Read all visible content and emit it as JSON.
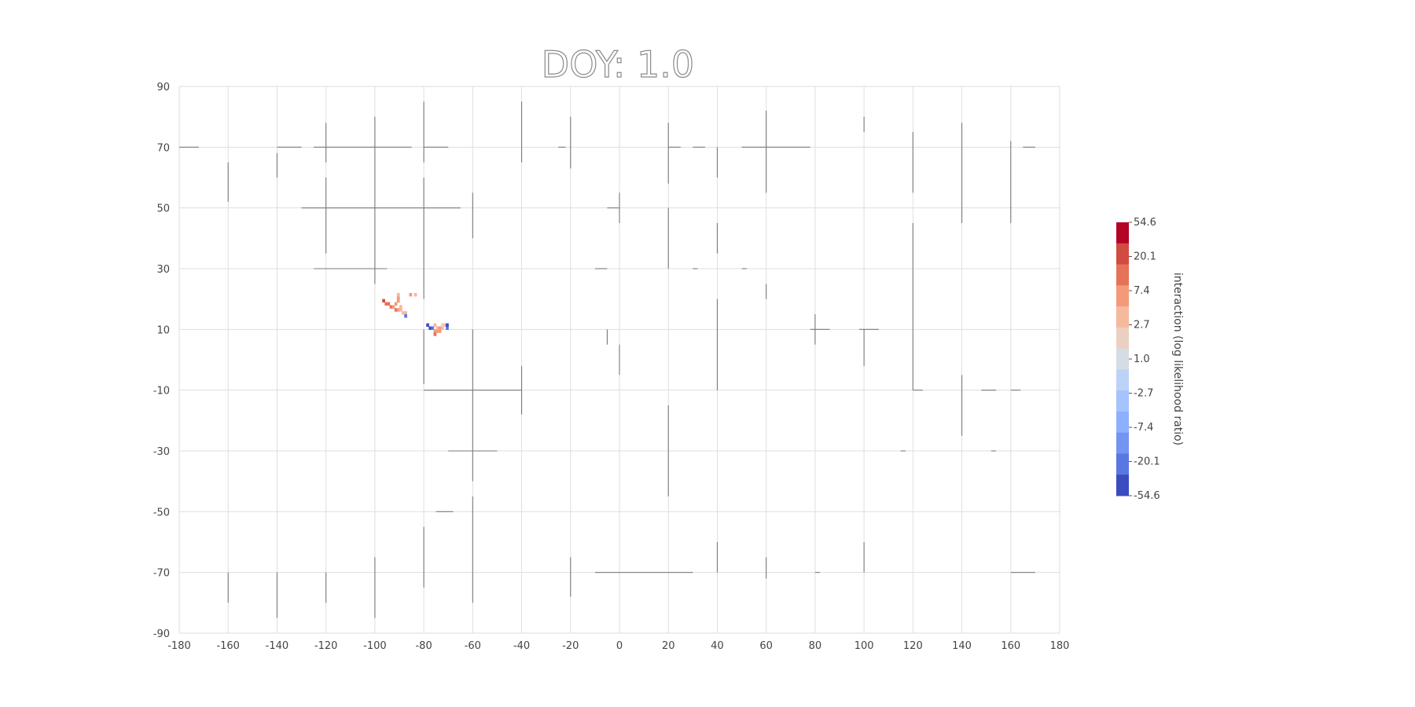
{
  "chart_data": {
    "type": "heatmap",
    "title": "DOY: 1.0",
    "xlabel": "",
    "ylabel": "",
    "xlim": [
      -180,
      180
    ],
    "ylim": [
      -90,
      90
    ],
    "xticks": [
      "-180",
      "-160",
      "-140",
      "-120",
      "-100",
      "-80",
      "-60",
      "-40",
      "-20",
      "0",
      "20",
      "40",
      "60",
      "80",
      "100",
      "120",
      "140",
      "160",
      "180"
    ],
    "yticks": [
      "90",
      "70",
      "50",
      "30",
      "10",
      "-10",
      "-30",
      "-50",
      "-70",
      "-90"
    ],
    "grid": true,
    "colorbar": {
      "label": "interaction (log likelihood ratio)",
      "ticks": [
        "54.6",
        "20.1",
        "7.4",
        "2.7",
        "1.0",
        "-2.7",
        "-7.4",
        "-20.1",
        "-54.6"
      ],
      "colors": [
        "#b40426",
        "#d24b40",
        "#e67358",
        "#f49a7b",
        "#f5b99e",
        "#ebd0c2",
        "#d6dce4",
        "#bcd2f7",
        "#a5c3fe",
        "#8caffe",
        "#7295f4",
        "#5977e3",
        "#3b4cc0"
      ]
    },
    "cells": [
      {
        "lon": -97,
        "lat": 19,
        "color": "#d24b40"
      },
      {
        "lon": -96,
        "lat": 18,
        "color": "#e67358"
      },
      {
        "lon": -95,
        "lat": 18,
        "color": "#e67358"
      },
      {
        "lon": -94,
        "lat": 17,
        "color": "#e67358"
      },
      {
        "lon": -93,
        "lat": 17,
        "color": "#f49a7b"
      },
      {
        "lon": -92,
        "lat": 18,
        "color": "#f49a7b"
      },
      {
        "lon": -91,
        "lat": 19,
        "color": "#f49a7b"
      },
      {
        "lon": -91,
        "lat": 20,
        "color": "#f49a7b"
      },
      {
        "lon": -91,
        "lat": 21,
        "color": "#f5b99e"
      },
      {
        "lon": -92,
        "lat": 16,
        "color": "#e67358"
      },
      {
        "lon": -91,
        "lat": 16,
        "color": "#f49a7b"
      },
      {
        "lon": -90,
        "lat": 16,
        "color": "#f5b99e"
      },
      {
        "lon": -89,
        "lat": 15,
        "color": "#f5b99e"
      },
      {
        "lon": -88,
        "lat": 15,
        "color": "#f5b99e"
      },
      {
        "lon": -90,
        "lat": 17,
        "color": "#f5b99e"
      },
      {
        "lon": -88,
        "lat": 14,
        "color": "#5977e3"
      },
      {
        "lon": -86,
        "lat": 21,
        "color": "#f49a7b"
      },
      {
        "lon": -84,
        "lat": 21,
        "color": "#f5b99e"
      },
      {
        "lon": -79,
        "lat": 11,
        "color": "#3b4cc0"
      },
      {
        "lon": -78,
        "lat": 10,
        "color": "#3b4cc0"
      },
      {
        "lon": -77,
        "lat": 10,
        "color": "#5977e3"
      },
      {
        "lon": -76,
        "lat": 9,
        "color": "#f49a7b"
      },
      {
        "lon": -76,
        "lat": 8,
        "color": "#e67358"
      },
      {
        "lon": -75,
        "lat": 9,
        "color": "#f49a7b"
      },
      {
        "lon": -75,
        "lat": 10,
        "color": "#f5b99e"
      },
      {
        "lon": -76,
        "lat": 11,
        "color": "#f5b99e"
      },
      {
        "lon": -74,
        "lat": 9,
        "color": "#f49a7b"
      },
      {
        "lon": -74,
        "lat": 10,
        "color": "#f49a7b"
      },
      {
        "lon": -73,
        "lat": 10,
        "color": "#f5b99e"
      },
      {
        "lon": -72,
        "lat": 11,
        "color": "#f5b99e"
      },
      {
        "lon": -73,
        "lat": 11,
        "color": "#ebd0c2"
      },
      {
        "lon": -71,
        "lat": 10,
        "color": "#5977e3"
      },
      {
        "lon": -71,
        "lat": 11,
        "color": "#3b4cc0"
      }
    ]
  }
}
